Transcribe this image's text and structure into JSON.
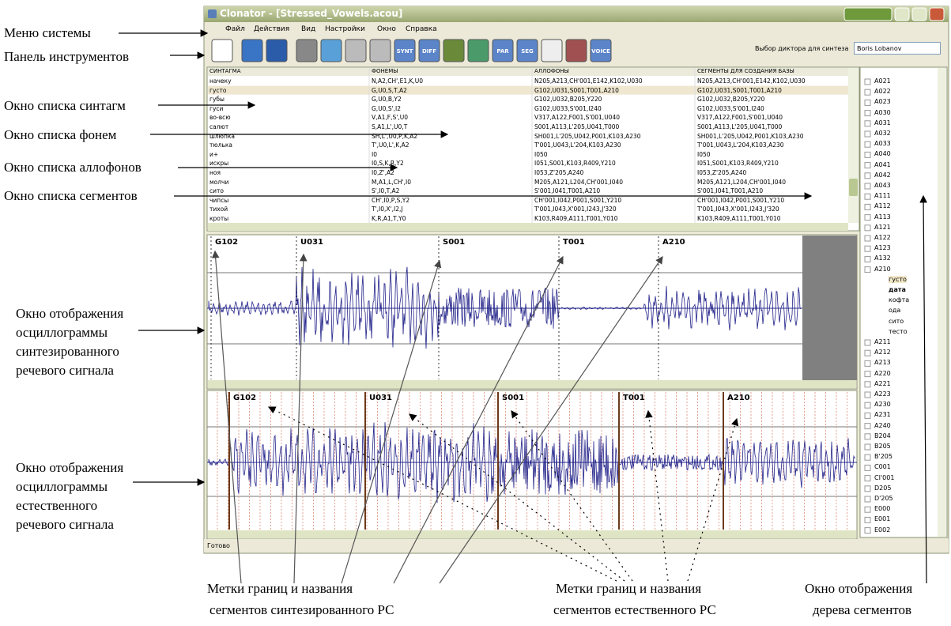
{
  "annotations": {
    "left": [
      [
        "Меню системы"
      ],
      [
        "Панель инструментов"
      ],
      [
        "Окно списка синтагм"
      ],
      [
        "Окно списка фонем"
      ],
      [
        "Окно списка аллофонов"
      ],
      [
        "Окно списка сегментов"
      ],
      [
        "Окно отображения",
        "осциллограммы",
        "синтезированного",
        "речевого сигнала"
      ],
      [
        "Окно отображения",
        "осциллограммы",
        "естественного",
        "речевого сигнала"
      ]
    ],
    "bottom": [
      [
        "Метки границ и названия",
        "сегментов синтезированного РС"
      ],
      [
        "Метки границ и названия",
        "сегментов естественного РС"
      ],
      [
        "Окно отображения",
        "дерева сегментов"
      ]
    ]
  },
  "window": {
    "title": "Clonator - [Stressed_Vowels.acou]",
    "menu": [
      "Файл",
      "Действия",
      "Вид",
      "Настройки",
      "Окно",
      "Справка"
    ],
    "toolbar": {
      "buttons": [
        "SYNT",
        "DIFF",
        "PAR",
        "SEG",
        "VOICE"
      ],
      "speaker_label": "Выбор диктора для синтеза",
      "speaker": "Boris Lobanov"
    }
  },
  "table": {
    "headers": [
      "СИНТАГМА",
      "ФОНЕМЫ",
      "АЛЛОФОНЫ",
      "СЕГМЕНТЫ ДЛЯ СОЗДАНИЯ БАЗЫ"
    ],
    "rows": [
      [
        "начеку",
        "N,A2,CH',E1,K,U0",
        "N205,A213,CH'001,E142,K102,U030",
        "N205,A213,CH'001,E142,K102,U030"
      ],
      [
        "густо",
        "G,U0,S,T,A2",
        "G102,U031,S001,T001,A210",
        "G102,U031,S001,T001,A210"
      ],
      [
        "губы",
        "G,U0,B,Y2",
        "G102,U032,B205,Y220",
        "G102,U032,B205,Y220"
      ],
      [
        "гуси",
        "G,U0,S',I2",
        "G102,U033,S'001,I240",
        "G102,U033,S'001,I240"
      ],
      [
        "во-всю",
        "V,A1,F,S',U0",
        "V317,A122,F001,S'001,U040",
        "V317,A122,F001,S'001,U040"
      ],
      [
        "салют",
        "S,A1,L',U0,T",
        "S001,A113,L'205,U041,T000",
        "S001,A113,L'205,U041,T000"
      ],
      [
        "шлюпка",
        "SH,L',U0,P,K,A2",
        "SH001,L'205,U042,P001,K103,A230",
        "SH001,L'205,U042,P001,K103,A230"
      ],
      [
        "тюлька",
        "T',U0,L',K,A2",
        "T'001,U043,L'204,K103,A230",
        "T'001,U043,L'204,K103,A230"
      ],
      [
        "и+",
        "I0",
        "I050",
        "I050"
      ],
      [
        "искры",
        "I0,S,K,R,Y2",
        "I051,S001,K103,R409,Y210",
        "I051,S001,K103,R409,Y210"
      ],
      [
        "ноя",
        "I0,Z',A2",
        "I053,Z'205,A240",
        "I053,Z'205,A240"
      ],
      [
        "молчи",
        "M,A1,L,CH',I0",
        "M205,A121,L204,CH'001,I040",
        "M205,A121,L204,CH'001,I040"
      ],
      [
        "сито",
        "S',I0,T,A2",
        "S'001,I041,T001,A210",
        "S'001,I041,T001,A210"
      ],
      [
        "чипсы",
        "CH',I0,P,S,Y2",
        "CH'001,I042,P001,S001,Y210",
        "CH'001,I042,P001,S001,Y210"
      ],
      [
        "тихой",
        "T',I0,X',I2,J",
        "T'001,I043,X'001,I243,J'320",
        "T'001,I043,X'001,I243,J'320"
      ],
      [
        "кроты",
        "K,R,A1,T,Y0",
        "K103,R409,A111,T001,Y010",
        "K103,R409,A111,T001,Y010"
      ]
    ]
  },
  "synth_wave": {
    "labels": [
      "G102",
      "U031",
      "S001",
      "T001",
      "A210"
    ]
  },
  "natural_wave": {
    "labels": [
      "G102",
      "U031",
      "S001",
      "T001",
      "A210"
    ]
  },
  "tree": {
    "items": [
      "A021",
      "A022",
      "A023",
      "A030",
      "A031",
      "A032",
      "A033",
      "A040",
      "A041",
      "A042",
      "A043",
      "A111",
      "A112",
      "A113",
      "A121",
      "A122",
      "A123",
      "A132",
      "A210",
      "A211",
      "A212",
      "A213",
      "A220",
      "A221",
      "A223",
      "A230",
      "A231",
      "A240",
      "B204",
      "B205",
      "B'205",
      "C001",
      "CI'001",
      "D205",
      "D'205",
      "E000",
      "E001",
      "E002"
    ],
    "expanded": "A210",
    "children": [
      "густо",
      "дата",
      "кофта",
      "ода",
      "сито",
      "тесто"
    ]
  },
  "status": "Готово"
}
